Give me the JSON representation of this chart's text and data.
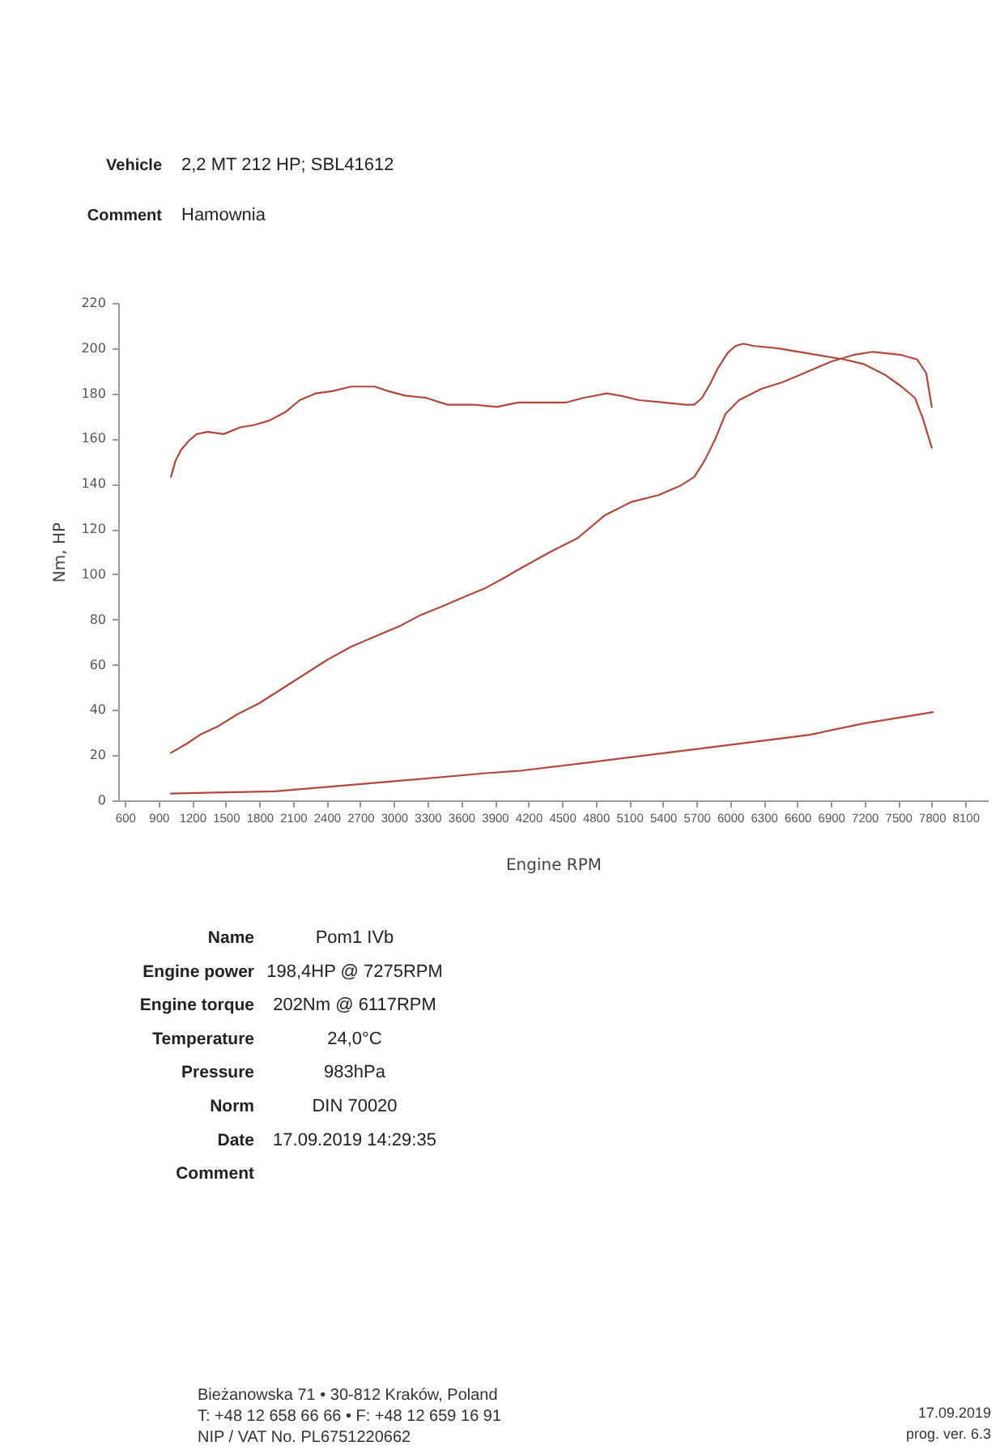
{
  "chart_data": [
    {
      "type": "other",
      "categories": [
        "Vehicle",
        "Comment"
      ],
      "value_labels": [
        "2,2 MT 212 HP; SBL41612",
        "Hamownia"
      ]
    },
    {
      "type": "line",
      "xlabel": "Engine RPM",
      "ylabel": "Nm, HP",
      "xlim": [
        540,
        8300
      ],
      "xticks": [
        600,
        900,
        1200,
        1500,
        1800,
        2100,
        2400,
        2700,
        3000,
        3300,
        3600,
        3900,
        4200,
        4500,
        4800,
        5100,
        5400,
        5700,
        6000,
        6300,
        6600,
        6900,
        7200,
        7500,
        7800,
        8100
      ],
      "ylim": [
        0,
        220
      ],
      "yticks": [
        0,
        20,
        40,
        60,
        80,
        100,
        120,
        140,
        160,
        180,
        200,
        220
      ],
      "line_style": "solid",
      "series": [
        {
          "color": "#b5473a",
          "x": [
            1010,
            1050,
            1100,
            1170,
            1240,
            1340,
            1480,
            1630,
            1750,
            1890,
            2040,
            2160,
            2300,
            2450,
            2620,
            2740,
            2830,
            2950,
            3100,
            3290,
            3480,
            3720,
            3920,
            4010,
            4110,
            4540,
            4690,
            4900,
            5020,
            5190,
            5410,
            5600,
            5680,
            5750,
            5820,
            5890,
            5980,
            6050,
            6117,
            6210,
            6420,
            6660,
            6900,
            7020,
            7190,
            7390,
            7530,
            7650,
            7720,
            7800
          ],
          "values": [
            143,
            150,
            155,
            159,
            162,
            163,
            162,
            165,
            166,
            168,
            172,
            177,
            180,
            181,
            183,
            183,
            183,
            181,
            179,
            178,
            175,
            175,
            174,
            175,
            176,
            176,
            178,
            180,
            179,
            177,
            176,
            175,
            175,
            178,
            184,
            191,
            198,
            201,
            202,
            201,
            200,
            198,
            196,
            195,
            193,
            188,
            183,
            178,
            169,
            156
          ]
        },
        {
          "color": "#b5473a",
          "x": [
            1010,
            1150,
            1270,
            1440,
            1600,
            1800,
            1990,
            2180,
            2400,
            2620,
            2810,
            3050,
            3240,
            3440,
            3630,
            3820,
            3970,
            4110,
            4400,
            4640,
            4880,
            5120,
            5360,
            5550,
            5680,
            5770,
            5870,
            5960,
            6080,
            6280,
            6470,
            6710,
            6900,
            7100,
            7275,
            7530,
            7670,
            7750,
            7800
          ],
          "values": [
            21,
            25,
            29,
            33,
            38,
            43,
            49,
            55,
            62,
            68,
            72,
            77,
            82,
            86,
            90,
            94,
            98,
            102,
            110,
            116,
            126,
            132,
            135,
            139,
            143,
            150,
            160,
            171,
            177,
            182,
            185,
            190,
            194,
            197,
            198.4,
            197,
            195,
            189,
            174
          ]
        },
        {
          "color": "#b5473a",
          "x": [
            1010,
            1940,
            2900,
            3820,
            4110,
            4780,
            5750,
            6710,
            7190,
            7810
          ],
          "values": [
            3,
            4,
            8,
            12,
            13,
            17,
            23,
            29,
            34,
            39
          ]
        }
      ]
    },
    {
      "type": "other",
      "categories": [
        "Name",
        "Engine power",
        "Engine torque",
        "Temperature",
        "Pressure",
        "Norm",
        "Date",
        "Comment"
      ],
      "value_labels": [
        "Pom1 IVb",
        "198,4HP @ 7275RPM",
        "202Nm @ 6117RPM",
        "24,0°C",
        "983hPa",
        "DIN 70020",
        "17.09.2019 14:29:35",
        null
      ],
      "annotations": [
        "Bieżanowska 71 • 30-812 Kraków, Poland",
        "T: +48 12 658 66 66 • F: +48 12 659 16 91",
        "NIP / VAT No. PL6751220662",
        "17.09.2019",
        "prog. ver. 6.3"
      ]
    }
  ]
}
